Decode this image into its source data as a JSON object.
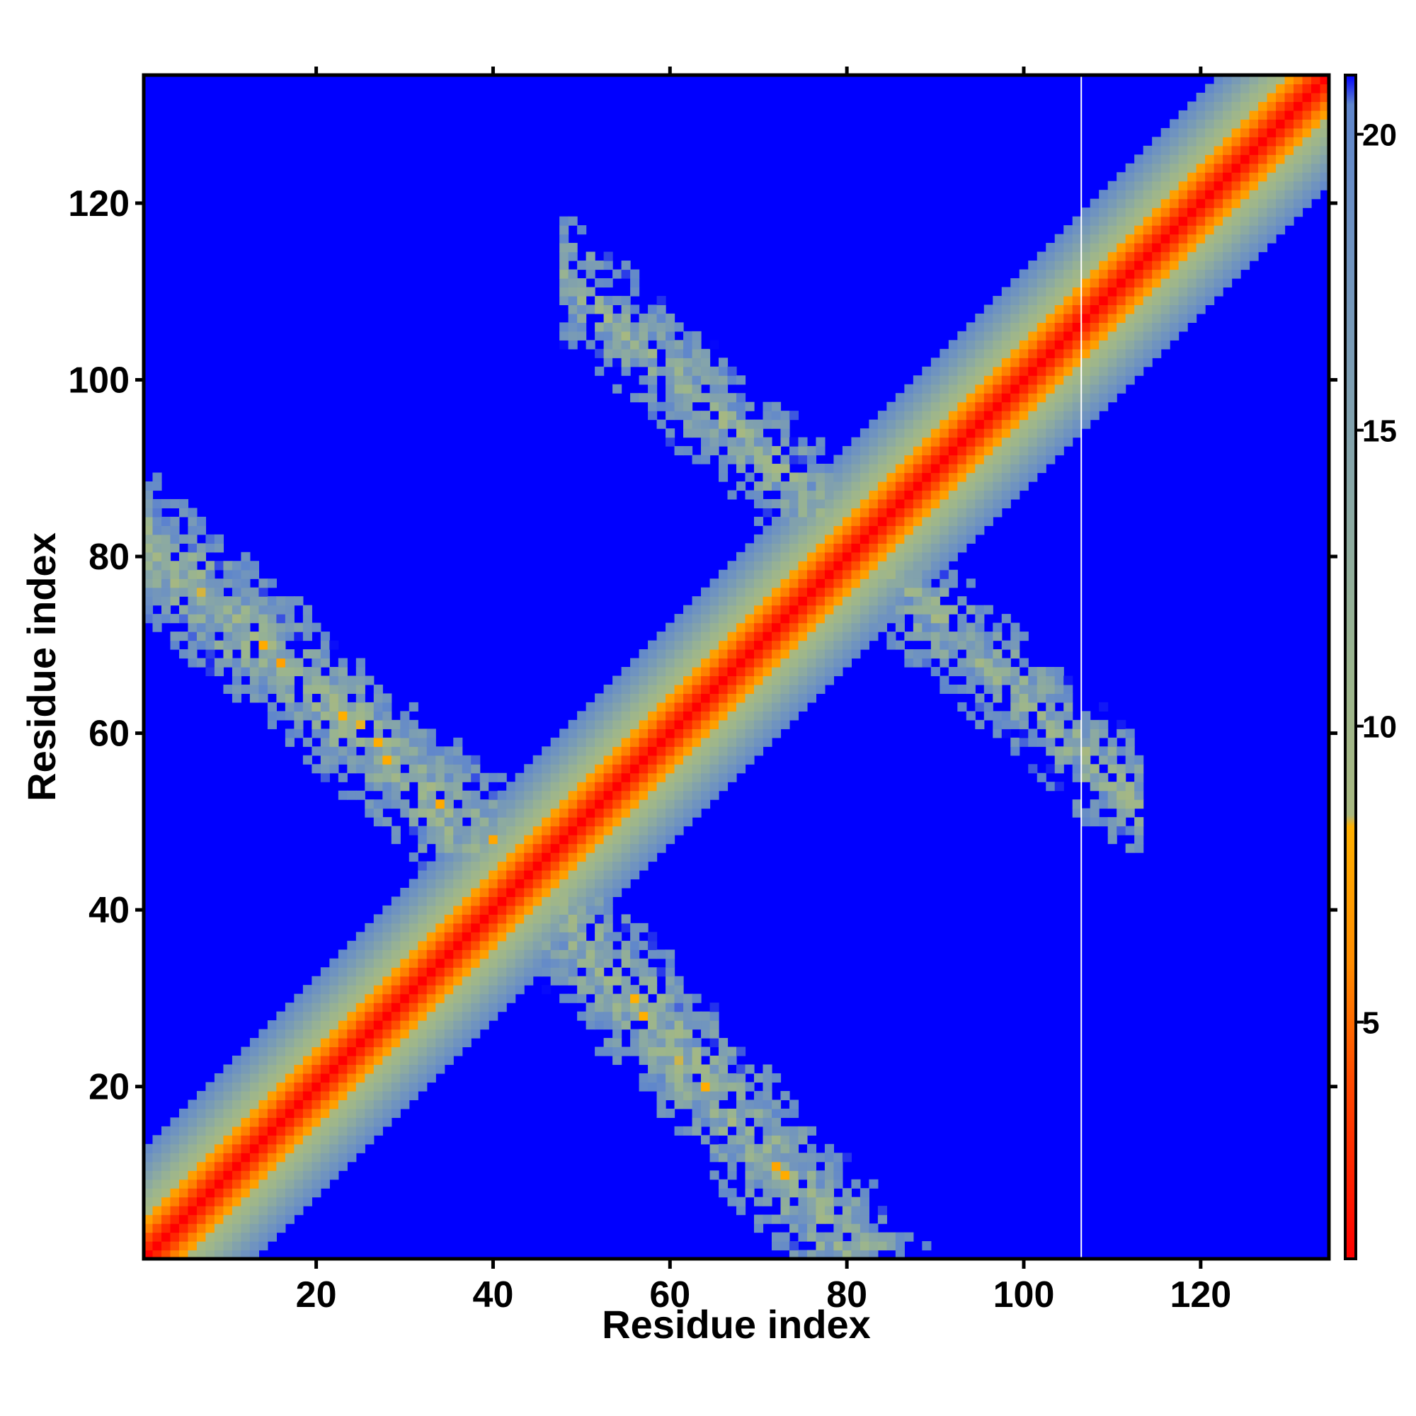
{
  "chart_data": {
    "type": "heatmap",
    "title": "",
    "xlabel": "Residue index",
    "ylabel": "Residue index",
    "n_residues": 134,
    "xlim": [
      1,
      134
    ],
    "ylim": [
      1,
      134
    ],
    "x_ticks": [
      20,
      40,
      60,
      80,
      100,
      120
    ],
    "x_tick_labels": [
      "20",
      "40",
      "60",
      "80",
      "100",
      "120"
    ],
    "y_ticks": [
      20,
      40,
      60,
      80,
      100,
      120
    ],
    "y_tick_labels": [
      "20",
      "40",
      "60",
      "80",
      "100",
      "120"
    ],
    "colorbar": {
      "range": [
        1,
        21
      ],
      "ticks": [
        5,
        10,
        15,
        20
      ],
      "tick_labels": [
        "5",
        "10",
        "15",
        "20"
      ],
      "stops": [
        {
          "value": 1,
          "color": "#ff0000"
        },
        {
          "value": 4,
          "color": "#ff4a00"
        },
        {
          "value": 6,
          "color": "#ff8c00"
        },
        {
          "value": 8.3,
          "color": "#ffb000"
        },
        {
          "value": 8.5,
          "color": "#a8b880"
        },
        {
          "value": 11,
          "color": "#9bb58e"
        },
        {
          "value": 14,
          "color": "#88a7a6"
        },
        {
          "value": 18,
          "color": "#6f93c0"
        },
        {
          "value": 20.5,
          "color": "#5f86cc"
        },
        {
          "value": 21,
          "color": "#0000ff"
        }
      ]
    },
    "background_color": "#0000ff",
    "diagonal_band": {
      "core_value": 1,
      "half_width_residues": 12
    },
    "contact_arms": [
      {
        "name": "antiparallel contacts (x=i, y=~136-i)",
        "x_range": [
          1,
          48
        ],
        "y_center": [
          81,
          40
        ],
        "half_width": 9
      },
      {
        "name": "antiparallel contacts (y=i, x=~136-i)",
        "y_range": [
          1,
          48
        ],
        "x_center": [
          81,
          40
        ],
        "half_width": 9
      },
      {
        "name": "upper-right arm",
        "x_range": [
          48,
          113
        ],
        "y_center": [
          112,
          52
        ],
        "half_width": 8
      }
    ],
    "white_vertical_line_x": 107,
    "grid": false,
    "legend": "colorbar-right"
  }
}
